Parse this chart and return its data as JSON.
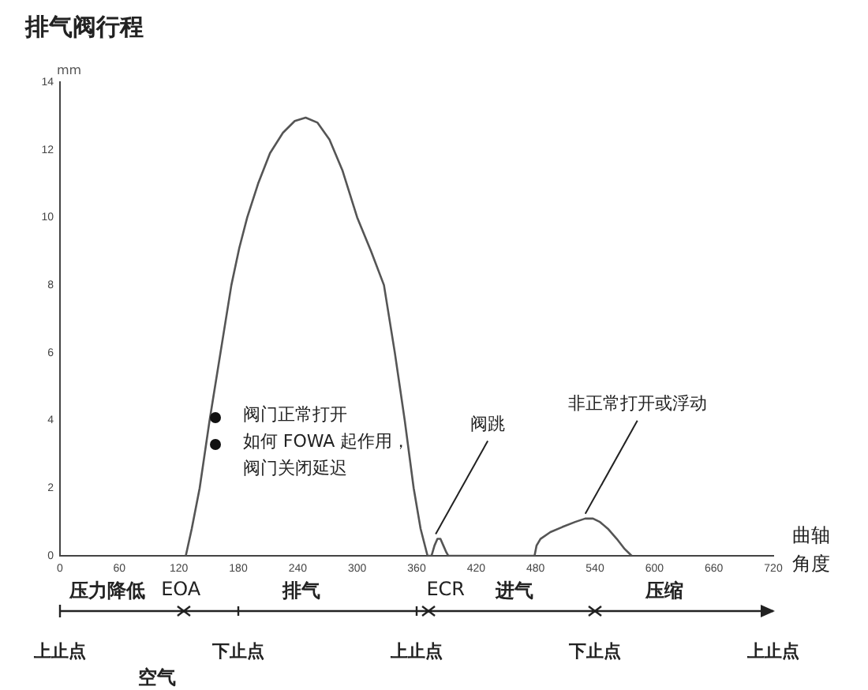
{
  "chart_data": {
    "type": "line",
    "title": "排气阀行程",
    "ylabel": "mm",
    "xlabel": "曲轴角度",
    "x": [
      127,
      133,
      141,
      151,
      162,
      173,
      181,
      189,
      200,
      212,
      225,
      237,
      248,
      260,
      272,
      285,
      300,
      314,
      327,
      338,
      348,
      357,
      364,
      371,
      375,
      378,
      381,
      384,
      387,
      390,
      392,
      479,
      481,
      485,
      495,
      507,
      520,
      530,
      538,
      545,
      553,
      562,
      570,
      577
    ],
    "series": [
      {
        "color": "#555555",
        "values": [
          0,
          0.8,
          2,
          4,
          6,
          8,
          9.1,
          10,
          11,
          11.9,
          12.5,
          12.85,
          12.95,
          12.8,
          12.3,
          11.4,
          10,
          9,
          8,
          6,
          4,
          2,
          0.8,
          0,
          0,
          0.3,
          0.5,
          0.5,
          0.3,
          0.1,
          0,
          0,
          0.3,
          0.5,
          0.7,
          0.85,
          1.0,
          1.1,
          1.1,
          1.0,
          0.8,
          0.5,
          0.2,
          0
        ]
      }
    ],
    "xlim": [
      0,
      720
    ],
    "xticks": [
      0,
      60,
      120,
      180,
      240,
      300,
      360,
      420,
      480,
      540,
      600,
      660,
      720
    ],
    "ylim": [
      0,
      14
    ],
    "yticks": [
      0,
      2,
      4,
      6,
      8,
      10,
      12,
      14
    ],
    "grid": false,
    "legend": false,
    "marker": "none",
    "line_style": "solid",
    "annotations": [
      "阀门正常打开",
      "如何 FOWA 起作用，",
      "阀门关闭延迟",
      {
        "text": "阀跳",
        "x": 384,
        "y": 0.5
      },
      {
        "text": "非正常打开或浮动",
        "x": 535,
        "y": 1.1
      },
      "压力降低",
      "EOA",
      "排气",
      "ECR",
      "进气",
      "压缩",
      "上止点",
      "下止点",
      "上止点",
      "下止点",
      "上止点",
      "空气"
    ]
  }
}
